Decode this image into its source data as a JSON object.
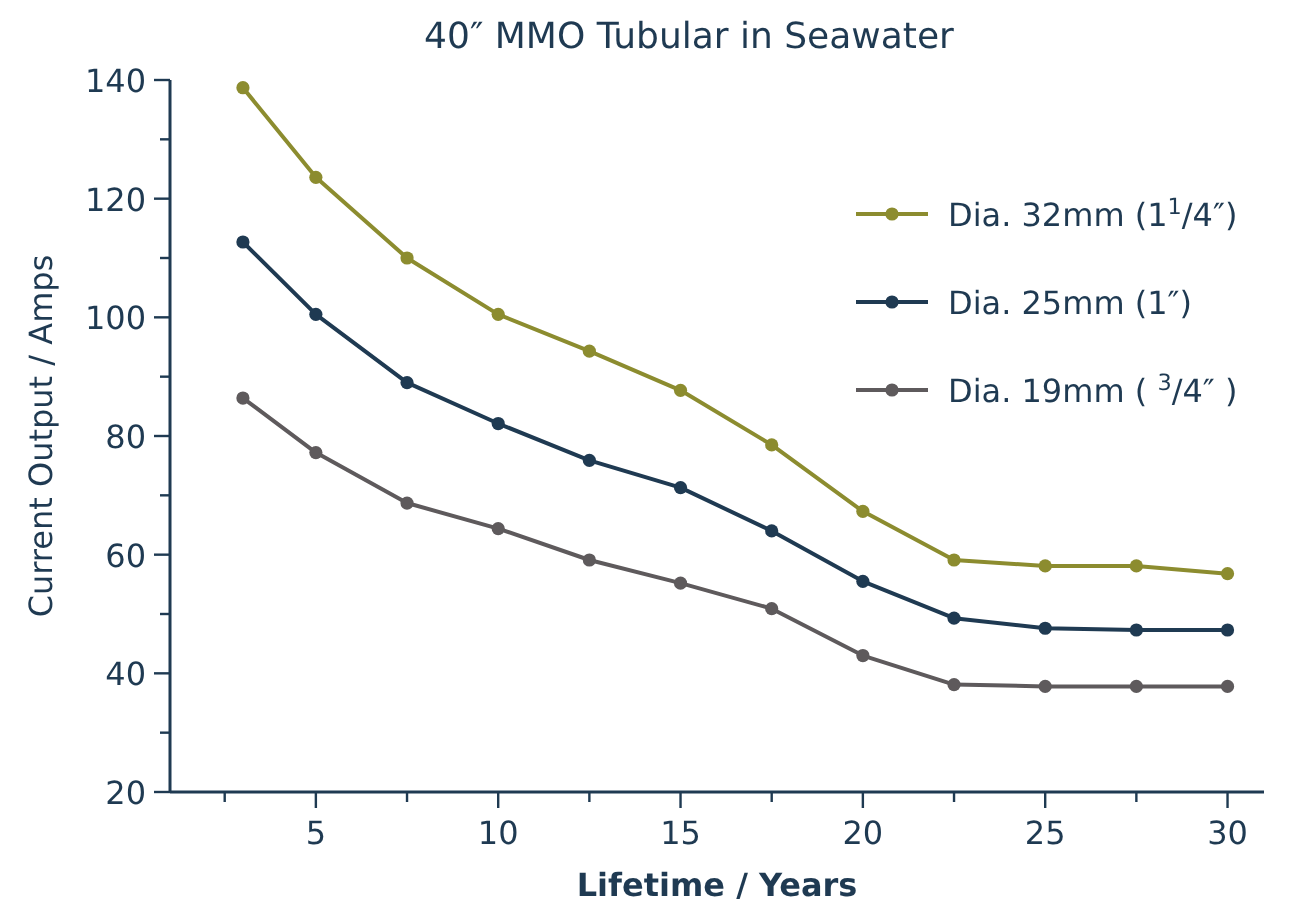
{
  "chart_data": {
    "type": "line",
    "title": "40″ MMO Tubular in Seawater",
    "xlabel": "Lifetime / Years",
    "ylabel": "Current Output / Amps",
    "x": [
      3,
      5,
      7.5,
      10,
      12.5,
      15,
      17.5,
      20,
      22.5,
      25,
      27.5,
      30
    ],
    "series": [
      {
        "name": "Dia. 32mm (1$^{1}$/4″)",
        "color": "#8c8c2f",
        "values": [
          138.7,
          123.6,
          110,
          100.5,
          94.3,
          87.7,
          78.5,
          67.3,
          59.1,
          58.1,
          58.1,
          56.8
        ]
      },
      {
        "name": "Dia. 25mm (1″)",
        "color": "#1f3a52",
        "values": [
          112.7,
          100.5,
          89,
          82.1,
          75.9,
          71.3,
          64,
          55.5,
          49.3,
          47.6,
          47.3,
          47.3
        ]
      },
      {
        "name": "Dia. 19mm ( $^{3}$/4″ )",
        "color": "#5e5a5c",
        "values": [
          86.4,
          77.2,
          68.7,
          64.4,
          59.1,
          55.2,
          50.9,
          43,
          38.1,
          37.8,
          37.8,
          37.8
        ]
      }
    ],
    "xlim": [
      1,
      31
    ],
    "ylim": [
      20,
      140
    ],
    "xticks": [
      {
        "value": 2.5,
        "label": null
      },
      5,
      {
        "value": 7.5,
        "label": null
      },
      10,
      {
        "value": 12.5,
        "label": null
      },
      15,
      {
        "value": 17.5,
        "label": null
      },
      20,
      {
        "value": 22.5,
        "label": null
      },
      25,
      {
        "value": 27.5,
        "label": null
      },
      30
    ],
    "yticks": [
      20,
      {
        "value": 30,
        "label": null
      },
      40,
      {
        "value": 50,
        "label": null
      },
      60,
      {
        "value": 70,
        "label": null
      },
      80,
      {
        "value": 90,
        "label": null
      },
      100,
      {
        "value": 110,
        "label": null
      },
      120,
      {
        "value": 130,
        "label": null
      },
      140
    ],
    "grid": false,
    "legend": "top right",
    "marker": "circle",
    "line_style": "solid"
  }
}
